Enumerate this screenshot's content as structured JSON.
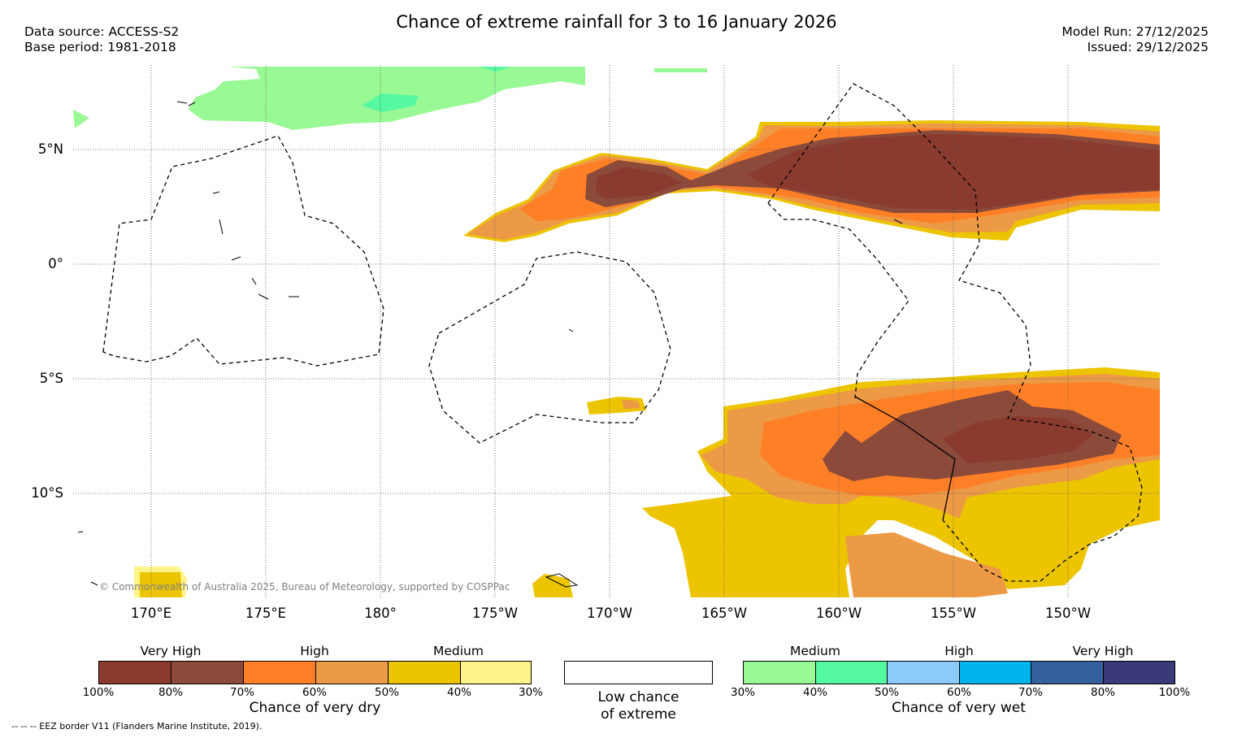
{
  "title": "Chance of extreme rainfall for 3 to 16 January 2026",
  "data_source": "Data source: ACCESS-S2",
  "base_period": "Base period: 1981-2018",
  "model_run": "Model Run: 27/12/2025",
  "issued": "Issued: 29/12/2025",
  "lat_labels": [
    "5°N",
    "0°",
    "5°S",
    "10°S"
  ],
  "lon_labels": [
    "170°E",
    "175°E",
    "180°",
    "175°W",
    "170°W",
    "165°W",
    "160°W",
    "155°W",
    "150°W"
  ],
  "copyright": "© Commonwealth of Australia 2025, Bureau of Meteorology, supported by COSPPac",
  "dry_legend": {
    "title": "Chance of very dry",
    "groups": [
      "Very High",
      "High",
      "Medium"
    ],
    "ticks": [
      "100%",
      "80%",
      "70%",
      "60%",
      "50%",
      "40%",
      "30%"
    ],
    "colors": [
      "#8b3a2e",
      "#8b4a3a",
      "#ff7f27",
      "#ec9a45",
      "#ecc400",
      "#fff48a"
    ]
  },
  "low_legend": {
    "line1": "Low chance",
    "line2": "of extreme"
  },
  "wet_legend": {
    "title": "Chance of very wet",
    "groups": [
      "Medium",
      "High",
      "Very High"
    ],
    "ticks": [
      "30%",
      "40%",
      "50%",
      "60%",
      "70%",
      "80%",
      "100%"
    ],
    "colors": [
      "#99f994",
      "#55f9a1",
      "#8ccbf9",
      "#00b4ee",
      "#355f9e",
      "#3b3a78"
    ]
  },
  "eez_note": "--  --  -- EEZ border V11 (Flanders Marine Institute, 2019)."
}
